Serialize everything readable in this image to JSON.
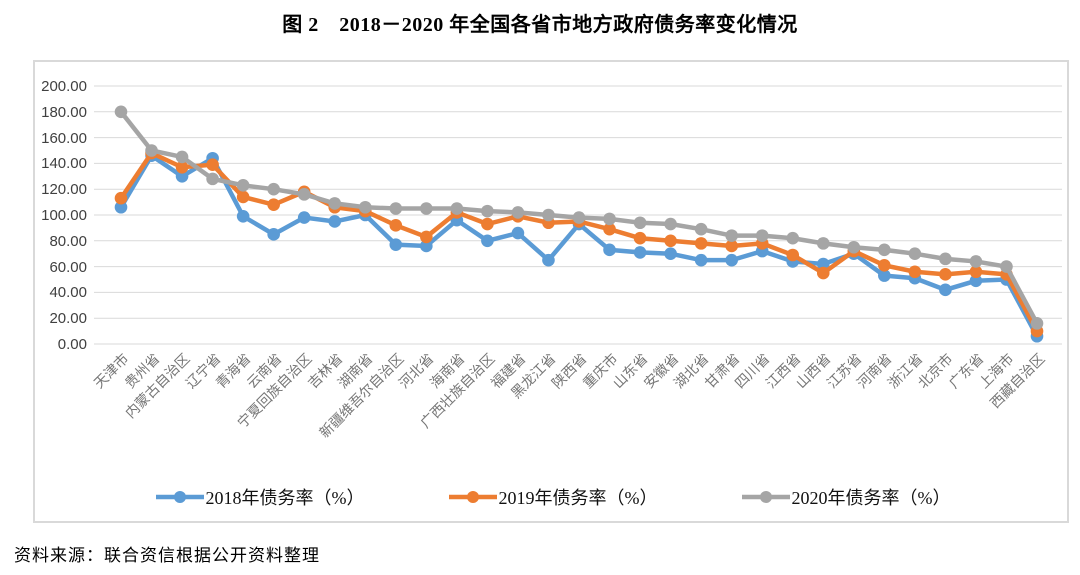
{
  "title": "图 2　2018－2020 年全国各省市地方政府债务率变化情况",
  "source_note": "资料来源：联合资信根据公开资料整理",
  "colors": {
    "series_2018": "#5B9BD5",
    "series_2019": "#ED7D31",
    "series_2020": "#A5A5A5",
    "gridline": "#D9D9D9",
    "frame_border": "#D9D9D9",
    "y_axis_text": "#404040",
    "x_axis_text": "#767676"
  },
  "chart_data": {
    "type": "line",
    "title": "图 2　2018－2020 年全国各省市地方政府债务率变化情况",
    "categories": [
      "天津市",
      "贵州省",
      "内蒙古自治区",
      "辽宁省",
      "青海省",
      "云南省",
      "宁夏回族自治区",
      "吉林省",
      "湖南省",
      "新疆维吾尔自治区",
      "河北省",
      "海南省",
      "广西壮族自治区",
      "福建省",
      "黑龙江省",
      "陕西省",
      "重庆市",
      "山东省",
      "安徽省",
      "湖北省",
      "甘肃省",
      "四川省",
      "江西省",
      "山西省",
      "江苏省",
      "河南省",
      "浙江省",
      "北京市",
      "广东省",
      "上海市",
      "西藏自治区"
    ],
    "series": [
      {
        "name": "2018年债务率（%）",
        "color_key": "series_2018",
        "values": [
          106,
          146,
          130,
          144,
          99,
          85,
          98,
          95,
          100,
          77,
          76,
          96,
          80,
          86,
          65,
          93,
          73,
          71,
          70,
          65,
          65,
          72,
          64,
          62,
          70,
          53,
          51,
          42,
          49,
          50,
          6
        ]
      },
      {
        "name": "2019年债务率（%）",
        "color_key": "series_2019",
        "values": [
          113,
          148,
          137,
          139,
          114,
          108,
          118,
          106,
          103,
          92,
          83,
          102,
          93,
          99,
          94,
          95,
          89,
          82,
          80,
          78,
          76,
          78,
          69,
          55,
          72,
          61,
          56,
          54,
          56,
          54,
          10
        ]
      },
      {
        "name": "2020年债务率（%）",
        "color_key": "series_2020",
        "values": [
          180,
          150,
          145,
          128,
          123,
          120,
          116,
          109,
          106,
          105,
          105,
          105,
          103,
          102,
          100,
          98,
          97,
          94,
          93,
          89,
          84,
          84,
          82,
          78,
          75,
          73,
          70,
          66,
          64,
          60,
          16
        ]
      }
    ],
    "xlabel": "",
    "ylabel": "",
    "ylim": [
      0,
      200
    ],
    "ytick_step": 20,
    "ytick_decimals": 2,
    "grid": true,
    "legend_position": "bottom",
    "marker": "circle"
  }
}
